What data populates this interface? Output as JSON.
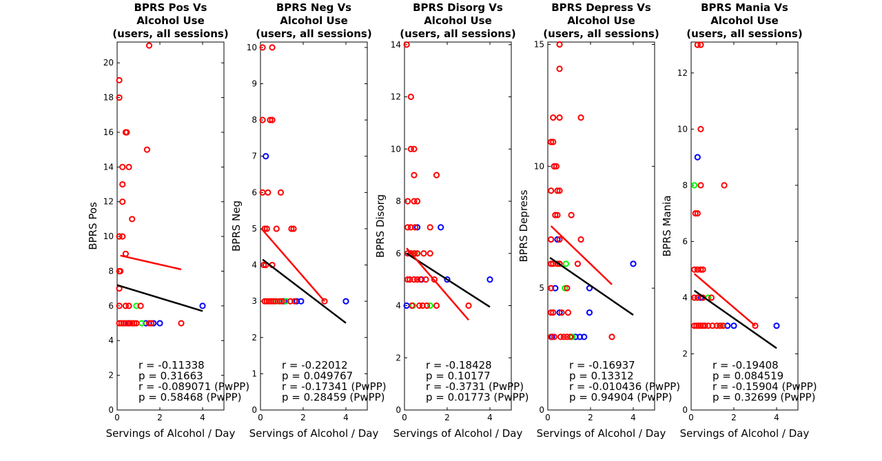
{
  "colors": {
    "red": "#ff0000",
    "green": "#00ff00",
    "blue": "#0000ff",
    "fit_black": "#000000",
    "fit_red": "#ff0000"
  },
  "chart_data": [
    {
      "type": "scatter",
      "title": [
        "BPRS Pos Vs",
        "Alcohol Use",
        "(users, all sessions)"
      ],
      "xlabel": "Servings of Alcohol / Day",
      "ylabel": "BPRS Pos",
      "xlim": [
        0,
        5
      ],
      "ylim": [
        0,
        21.2
      ],
      "xticks": [
        0,
        2,
        4
      ],
      "yticks": [
        0,
        2,
        4,
        6,
        8,
        10,
        12,
        14,
        16,
        18,
        20
      ],
      "points": {
        "red": [
          [
            0.1,
            19
          ],
          [
            0.1,
            18
          ],
          [
            0.1,
            10
          ],
          [
            0.25,
            10
          ],
          [
            0.1,
            8
          ],
          [
            0.15,
            8
          ],
          [
            0.1,
            7
          ],
          [
            0.1,
            6
          ],
          [
            0.1,
            5
          ],
          [
            0.2,
            5
          ],
          [
            0.3,
            5
          ],
          [
            0.4,
            5
          ],
          [
            0.5,
            5
          ],
          [
            0.6,
            5
          ],
          [
            0.7,
            5
          ],
          [
            0.8,
            5
          ],
          [
            0.9,
            5
          ],
          [
            0.4,
            16
          ],
          [
            0.45,
            16
          ],
          [
            1.5,
            21
          ],
          [
            1.4,
            15
          ],
          [
            0.25,
            14
          ],
          [
            0.55,
            14
          ],
          [
            0.25,
            13
          ],
          [
            0.25,
            12
          ],
          [
            0.7,
            11
          ],
          [
            0.4,
            9
          ],
          [
            0.4,
            6
          ],
          [
            0.55,
            6
          ],
          [
            1.1,
            6
          ],
          [
            3.0,
            5
          ],
          [
            1.5,
            5
          ],
          [
            1.6,
            5
          ]
        ],
        "green": [
          [
            0.9,
            6
          ],
          [
            1.15,
            5
          ]
        ],
        "blue": [
          [
            4.0,
            6
          ],
          [
            1.35,
            5
          ],
          [
            1.7,
            5
          ],
          [
            2.0,
            5
          ],
          [
            0.55,
            5
          ]
        ]
      },
      "fits": {
        "black": [
          [
            0,
            7.2
          ],
          [
            4,
            5.7
          ]
        ],
        "red": [
          [
            0.15,
            8.9
          ],
          [
            3,
            8.1
          ]
        ]
      },
      "stats": [
        "r = -0.11338",
        "p = 0.31663",
        "r = -0.089071 (PwPP)",
        "p = 0.58468 (PwPP)"
      ]
    },
    {
      "type": "scatter",
      "title": [
        "BPRS Neg Vs",
        "Alcohol Use",
        "(users, all sessions)"
      ],
      "xlabel": "Servings of Alcohol / Day",
      "ylabel": "BPRS Neg",
      "xlim": [
        0,
        5
      ],
      "ylim": [
        0,
        10.15
      ],
      "xticks": [
        0,
        2,
        4
      ],
      "yticks": [
        0,
        1,
        2,
        3,
        4,
        5,
        6,
        7,
        8,
        9,
        10
      ],
      "points": {
        "red": [
          [
            0.1,
            10
          ],
          [
            0.55,
            10
          ],
          [
            0.1,
            8
          ],
          [
            0.45,
            8
          ],
          [
            0.55,
            8
          ],
          [
            0.1,
            6
          ],
          [
            0.35,
            6
          ],
          [
            0.95,
            6
          ],
          [
            0.2,
            5
          ],
          [
            0.3,
            5
          ],
          [
            0.75,
            5
          ],
          [
            1.45,
            5
          ],
          [
            1.55,
            5
          ],
          [
            0.15,
            4
          ],
          [
            0.25,
            4
          ],
          [
            0.55,
            4
          ],
          [
            0.2,
            3
          ],
          [
            0.3,
            3
          ],
          [
            0.4,
            3
          ],
          [
            0.5,
            3
          ],
          [
            0.6,
            3
          ],
          [
            0.7,
            3
          ],
          [
            0.9,
            3
          ],
          [
            1.0,
            3
          ],
          [
            1.4,
            3
          ],
          [
            1.6,
            3
          ],
          [
            3.0,
            3
          ]
        ],
        "green": [
          [
            0.8,
            3
          ],
          [
            1.2,
            3
          ]
        ],
        "blue": [
          [
            0.25,
            7
          ],
          [
            4.0,
            3
          ],
          [
            1.9,
            3
          ],
          [
            1.7,
            3
          ],
          [
            1.1,
            3
          ]
        ]
      },
      "fits": {
        "black": [
          [
            0.1,
            4.15
          ],
          [
            4,
            2.4
          ]
        ],
        "red": [
          [
            0.05,
            5.0
          ],
          [
            3,
            3.0
          ]
        ]
      },
      "stats": [
        "r = -0.22012",
        "p = 0.049767",
        "r = -0.17341 (PwPP)",
        "p = 0.28459 (PwPP)"
      ]
    },
    {
      "type": "scatter",
      "title": [
        "BPRS Disorg Vs",
        "Alcohol Use",
        "(users, all sessions)"
      ],
      "xlabel": "Servings of Alcohol / Day",
      "ylabel": "BPRS Disorg",
      "xlim": [
        0,
        5
      ],
      "ylim": [
        0,
        14.1
      ],
      "xticks": [
        0,
        2,
        4
      ],
      "yticks": [
        0,
        2,
        4,
        6,
        8,
        10,
        12,
        14
      ],
      "points": {
        "red": [
          [
            0.1,
            14
          ],
          [
            0.3,
            12
          ],
          [
            0.3,
            10
          ],
          [
            0.45,
            10
          ],
          [
            0.45,
            9
          ],
          [
            1.5,
            9
          ],
          [
            0.15,
            8
          ],
          [
            0.45,
            8
          ],
          [
            0.6,
            8
          ],
          [
            0.15,
            7
          ],
          [
            0.3,
            7
          ],
          [
            0.5,
            7
          ],
          [
            1.2,
            7
          ],
          [
            0.15,
            6
          ],
          [
            0.3,
            6
          ],
          [
            0.45,
            6
          ],
          [
            0.6,
            6
          ],
          [
            0.9,
            6
          ],
          [
            1.2,
            6
          ],
          [
            0.15,
            5
          ],
          [
            0.25,
            5
          ],
          [
            0.45,
            5
          ],
          [
            0.6,
            5
          ],
          [
            0.75,
            5
          ],
          [
            1.0,
            5
          ],
          [
            1.4,
            5
          ],
          [
            0.35,
            4
          ],
          [
            0.7,
            4
          ],
          [
            0.85,
            4
          ],
          [
            1.05,
            4
          ],
          [
            1.5,
            4
          ],
          [
            3.0,
            4
          ]
        ],
        "green": [
          [
            0.5,
            6
          ],
          [
            1.2,
            4
          ],
          [
            0.4,
            4
          ]
        ],
        "blue": [
          [
            0.6,
            7
          ],
          [
            1.7,
            7
          ],
          [
            2.0,
            5
          ],
          [
            4.0,
            5
          ],
          [
            0.8,
            5
          ],
          [
            0.1,
            4
          ],
          [
            0.3,
            6
          ]
        ]
      },
      "fits": {
        "black": [
          [
            0.1,
            6.0
          ],
          [
            4,
            3.95
          ]
        ],
        "red": [
          [
            0.1,
            6.2
          ],
          [
            3,
            3.45
          ]
        ]
      },
      "stats": [
        "r = -0.18428",
        "p = 0.10177",
        "r = -0.3731 (PwPP)",
        "p = 0.01773 (PwPP)"
      ]
    },
    {
      "type": "scatter",
      "title": [
        "BPRS Depress Vs",
        "Alcohol Use",
        "(users, all sessions)"
      ],
      "xlabel": "Servings of Alcohol / Day",
      "ylabel": "BPRS Depress",
      "xlim": [
        0,
        5
      ],
      "ylim": [
        0,
        15.1
      ],
      "xticks": [
        0,
        2,
        4
      ],
      "yticks": [
        0,
        5,
        10,
        15
      ],
      "points": {
        "red": [
          [
            0.55,
            15
          ],
          [
            0.55,
            14
          ],
          [
            0.25,
            12
          ],
          [
            0.55,
            12
          ],
          [
            1.55,
            12
          ],
          [
            0.15,
            11
          ],
          [
            0.25,
            11
          ],
          [
            0.3,
            10
          ],
          [
            0.4,
            10
          ],
          [
            0.15,
            9
          ],
          [
            0.45,
            9
          ],
          [
            0.55,
            9
          ],
          [
            0.35,
            8
          ],
          [
            0.45,
            8
          ],
          [
            1.1,
            8
          ],
          [
            0.15,
            7
          ],
          [
            0.55,
            7
          ],
          [
            1.55,
            7
          ],
          [
            0.15,
            6
          ],
          [
            0.25,
            6
          ],
          [
            0.45,
            6
          ],
          [
            0.55,
            6
          ],
          [
            1.4,
            6
          ],
          [
            0.15,
            5
          ],
          [
            0.9,
            5
          ],
          [
            0.15,
            4
          ],
          [
            0.25,
            4
          ],
          [
            0.65,
            4
          ],
          [
            0.95,
            4
          ],
          [
            0.15,
            3
          ],
          [
            0.3,
            3
          ],
          [
            0.6,
            3
          ],
          [
            0.75,
            3
          ],
          [
            0.9,
            3
          ],
          [
            1.05,
            3
          ],
          [
            3.0,
            3
          ]
        ],
        "green": [
          [
            0.85,
            6
          ],
          [
            0.8,
            5
          ],
          [
            1.15,
            3
          ]
        ],
        "blue": [
          [
            0.3,
            10
          ],
          [
            0.45,
            7
          ],
          [
            1.95,
            5
          ],
          [
            0.35,
            5
          ],
          [
            4.0,
            6
          ],
          [
            1.95,
            4
          ],
          [
            0.55,
            4
          ],
          [
            1.3,
            3
          ],
          [
            1.5,
            3
          ],
          [
            1.7,
            3
          ],
          [
            0.2,
            3
          ]
        ]
      },
      "fits": {
        "black": [
          [
            0.1,
            6.25
          ],
          [
            4,
            3.9
          ]
        ],
        "red": [
          [
            0.15,
            7.55
          ],
          [
            3,
            5.15
          ]
        ]
      },
      "stats": [
        "r = -0.16937",
        "p = 0.13312",
        "r = -0.010436 (PwPP)",
        "p = 0.94904 (PwPP)"
      ]
    },
    {
      "type": "scatter",
      "title": [
        "BPRS Mania Vs",
        "Alcohol Use",
        "(users, all sessions)"
      ],
      "xlabel": "Servings of Alcohol / Day",
      "ylabel": "BPRS Mania",
      "xlim": [
        0,
        5
      ],
      "ylim": [
        0,
        13.1
      ],
      "xticks": [
        0,
        2,
        4
      ],
      "yticks": [
        0,
        2,
        4,
        6,
        8,
        10,
        12
      ],
      "points": {
        "red": [
          [
            0.3,
            13
          ],
          [
            0.45,
            13
          ],
          [
            0.45,
            10
          ],
          [
            0.45,
            8
          ],
          [
            1.55,
            8
          ],
          [
            0.2,
            7
          ],
          [
            0.3,
            7
          ],
          [
            0.15,
            5
          ],
          [
            0.3,
            5
          ],
          [
            0.45,
            5
          ],
          [
            0.55,
            5
          ],
          [
            0.15,
            4
          ],
          [
            0.3,
            4
          ],
          [
            0.55,
            4
          ],
          [
            0.95,
            4
          ],
          [
            0.15,
            3
          ],
          [
            0.25,
            3
          ],
          [
            0.35,
            3
          ],
          [
            0.45,
            3
          ],
          [
            0.55,
            3
          ],
          [
            0.65,
            3
          ],
          [
            0.8,
            3
          ],
          [
            1.0,
            3
          ],
          [
            1.2,
            3
          ],
          [
            1.35,
            3
          ],
          [
            1.5,
            3
          ],
          [
            3.0,
            3
          ]
        ],
        "green": [
          [
            0.15,
            8
          ],
          [
            0.8,
            4
          ],
          [
            1.4,
            3
          ]
        ],
        "blue": [
          [
            0.3,
            9
          ],
          [
            4.0,
            3
          ],
          [
            2.0,
            3
          ],
          [
            1.7,
            3
          ],
          [
            0.45,
            4
          ]
        ]
      },
      "fits": {
        "black": [
          [
            0.15,
            4.25
          ],
          [
            4,
            2.2
          ]
        ],
        "red": [
          [
            0.15,
            4.85
          ],
          [
            3,
            3.0
          ]
        ]
      },
      "stats": [
        "r = -0.19408",
        "p = 0.084519",
        "r = -0.15904 (PwPP)",
        "p = 0.32699 (PwPP)"
      ]
    }
  ]
}
